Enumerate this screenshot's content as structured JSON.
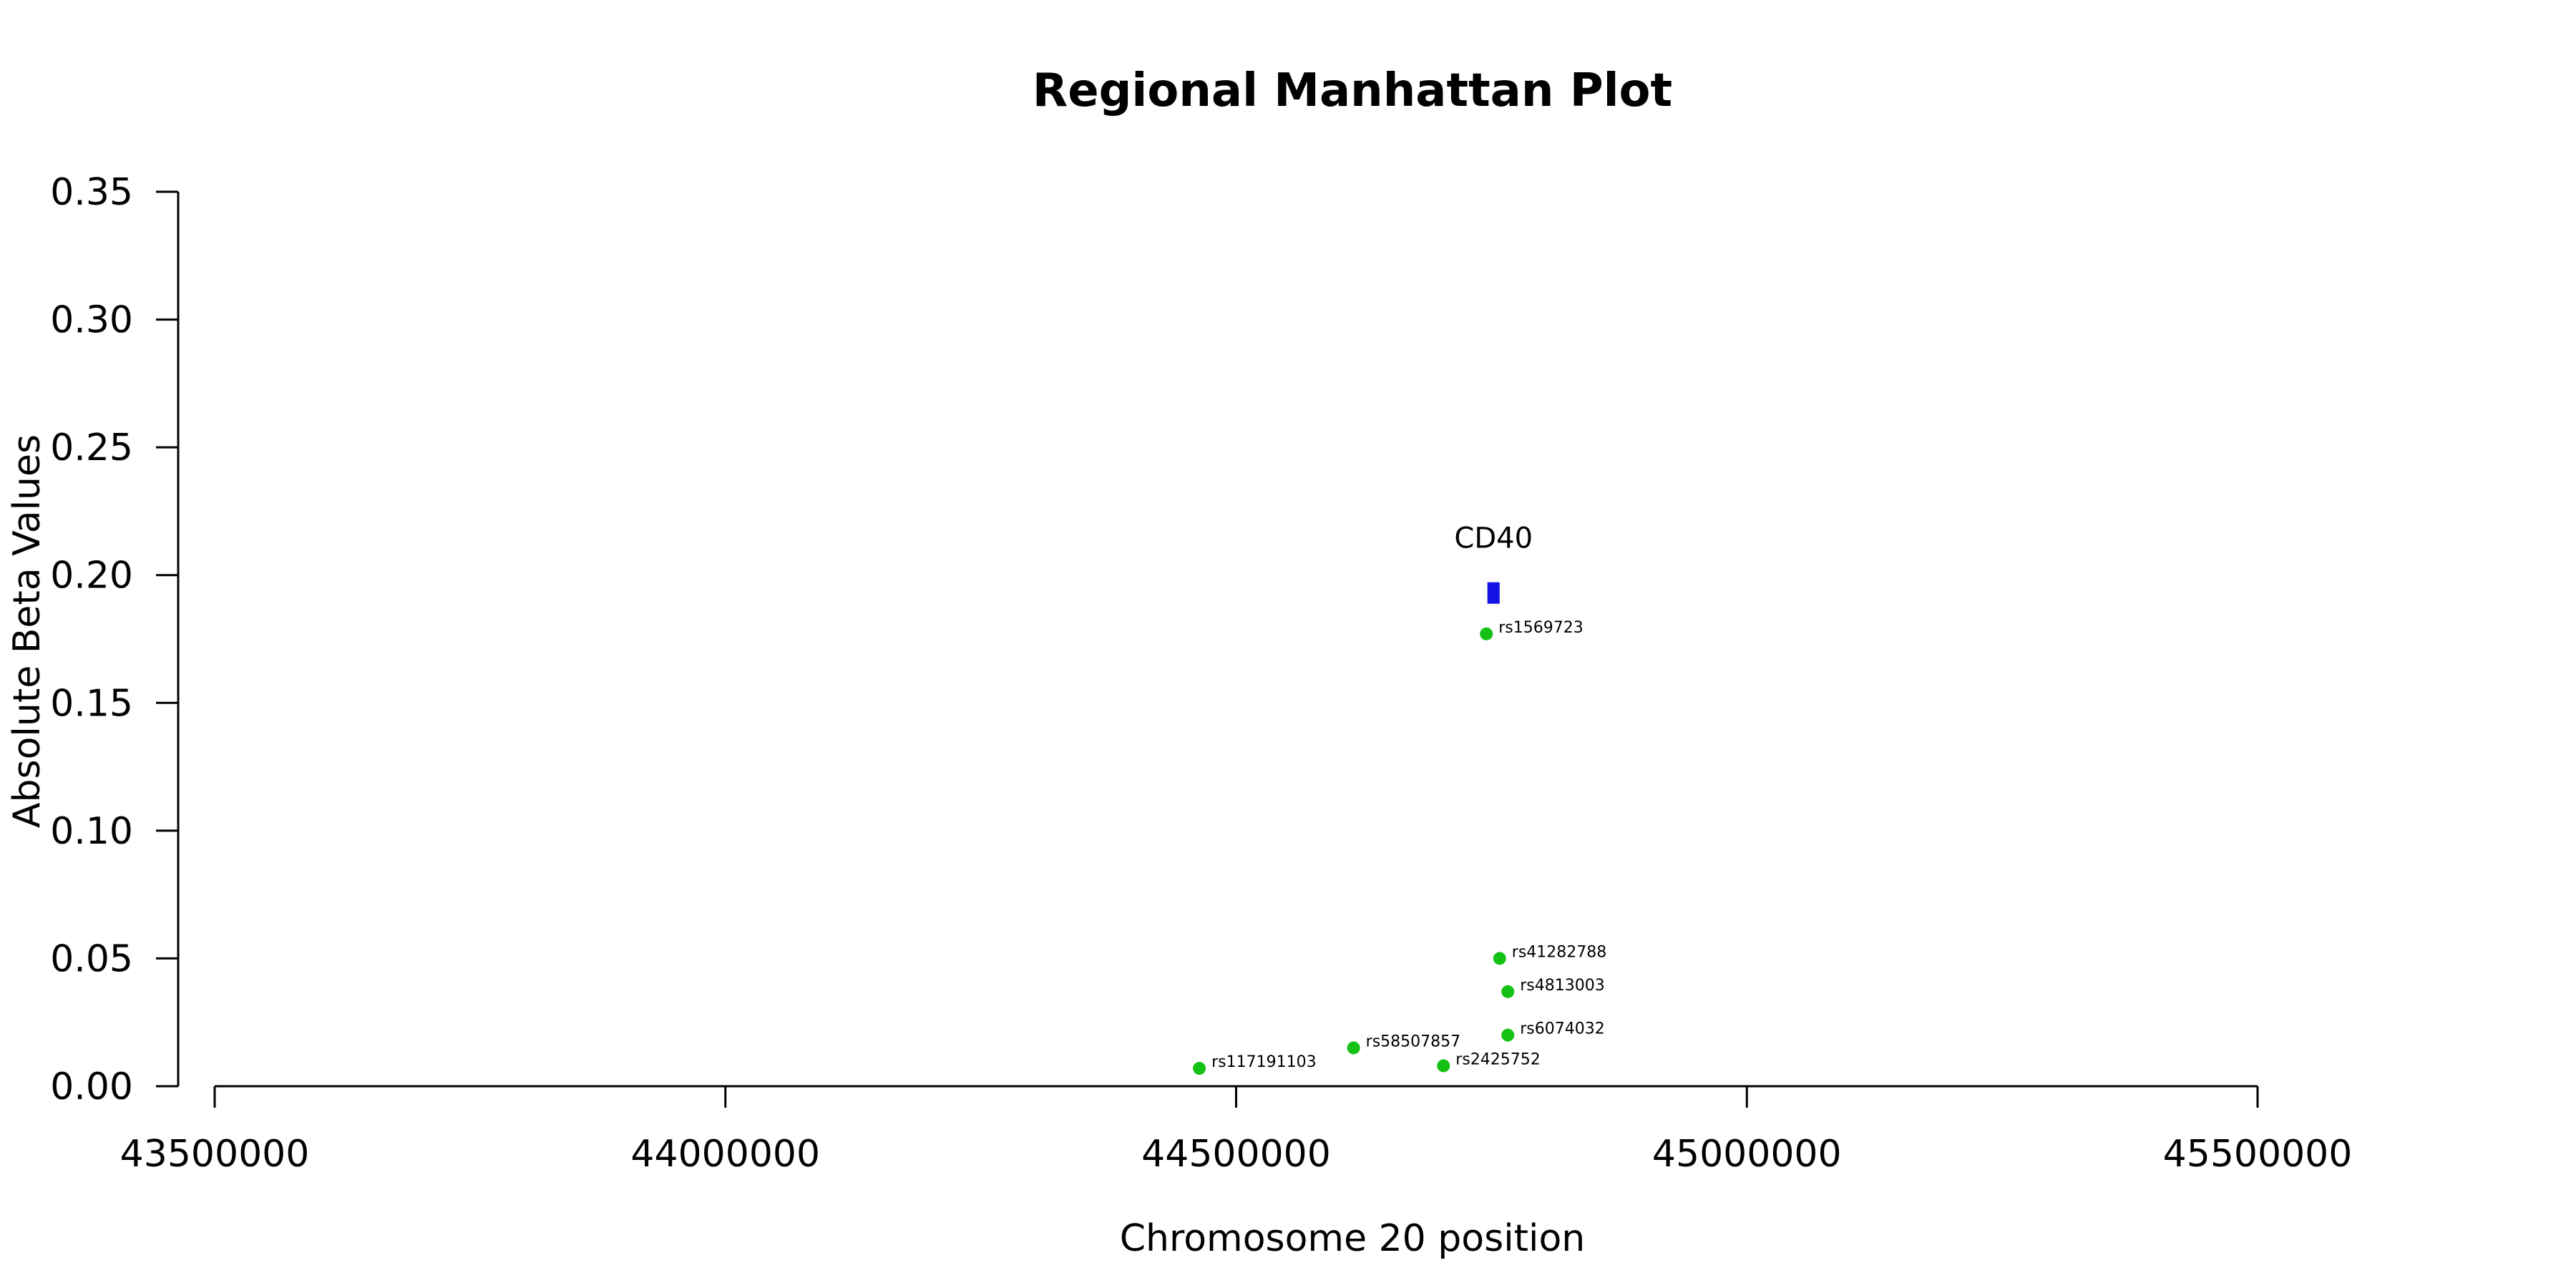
{
  "chart_data": {
    "type": "scatter",
    "title": "Regional Manhattan Plot",
    "xlabel": "Chromosome 20 position",
    "ylabel": "Absolute Beta Values",
    "xlim": [
      43500000,
      45500000
    ],
    "ylim": [
      0.0,
      0.35
    ],
    "x_ticks": [
      43500000,
      44000000,
      44500000,
      45000000,
      45500000
    ],
    "x_tick_labels": [
      "43500000",
      "44000000",
      "44500000",
      "45000000",
      "45500000"
    ],
    "y_ticks": [
      0.0,
      0.05,
      0.1,
      0.15,
      0.2,
      0.25,
      0.3,
      0.35
    ],
    "y_tick_labels": [
      "0.00",
      "0.05",
      "0.10",
      "0.15",
      "0.20",
      "0.25",
      "0.30",
      "0.35"
    ],
    "grid": false,
    "legend": "none",
    "colors": {
      "snp_point": "#14c114",
      "gene_marker": "#1414e6",
      "axis": "#000000"
    },
    "series": [
      {
        "points": [
          {
            "label": "rs1569723",
            "x": 44745000,
            "y": 0.177
          },
          {
            "label": "rs41282788",
            "x": 44758000,
            "y": 0.05
          },
          {
            "label": "rs4813003",
            "x": 44766000,
            "y": 0.037
          },
          {
            "label": "rs6074032",
            "x": 44766000,
            "y": 0.02
          },
          {
            "label": "rs58507857",
            "x": 44615000,
            "y": 0.015
          },
          {
            "label": "rs2425752",
            "x": 44703000,
            "y": 0.008
          },
          {
            "label": "rs117191103",
            "x": 44464000,
            "y": 0.007
          }
        ]
      }
    ],
    "gene_markers": [
      {
        "label": "CD40",
        "x_start": 44746000,
        "x_end": 44758000,
        "y": 0.193
      }
    ]
  }
}
